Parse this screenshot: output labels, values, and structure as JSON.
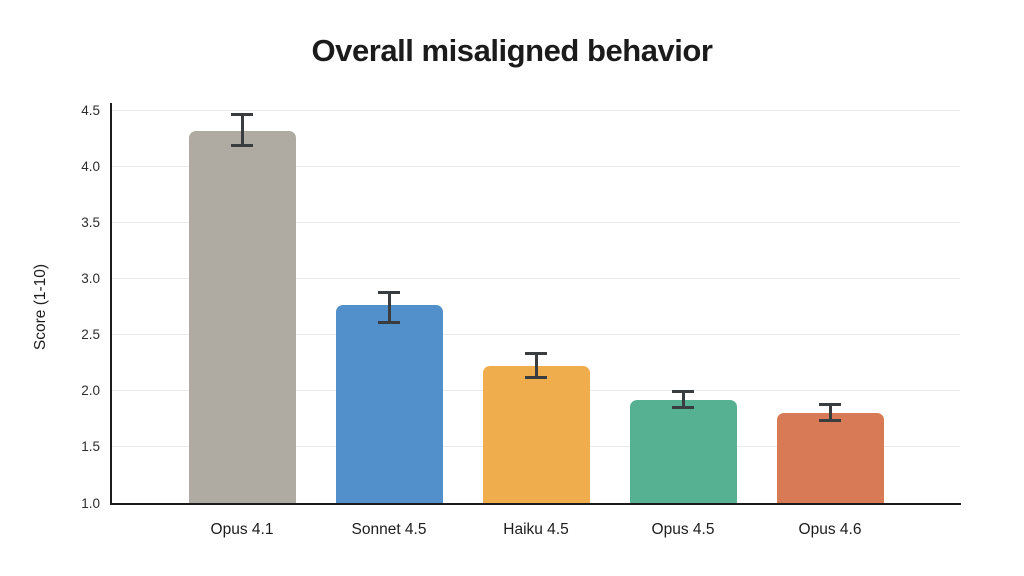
{
  "title": "Overall misaligned behavior",
  "chart_data": {
    "type": "bar",
    "title": "Overall misaligned behavior",
    "ylabel": "Score (1-10)",
    "xlabel": "",
    "ylim": [
      1.0,
      4.5
    ],
    "ytick_step": 0.5,
    "yticks": [
      "4.5",
      "4.0",
      "3.5",
      "3.0",
      "2.5",
      "2.0",
      "1.5",
      "1.0"
    ],
    "grid": "horizontal-only",
    "legend_position": "none",
    "categories": [
      "Opus 4.1",
      "Sonnet 4.5",
      "Haiku 4.5",
      "Opus 4.5",
      "Opus 4.6"
    ],
    "values": [
      4.31,
      2.76,
      2.22,
      1.92,
      1.8
    ],
    "error_low": [
      4.18,
      2.6,
      2.11,
      1.85,
      1.73
    ],
    "error_high": [
      4.46,
      2.88,
      2.34,
      2.0,
      1.88
    ],
    "bar_colors": [
      "#afaba3",
      "#5290cc",
      "#f0ad4d",
      "#56b193",
      "#d87a55"
    ],
    "error_bar_color": "#3a3d40",
    "axis_color": "#1c1c1c",
    "grid_color": "#eaeaea",
    "background_color": "#ffffff",
    "title_color": "#1b1b1b",
    "tick_label_color": "#2d2d2d"
  }
}
